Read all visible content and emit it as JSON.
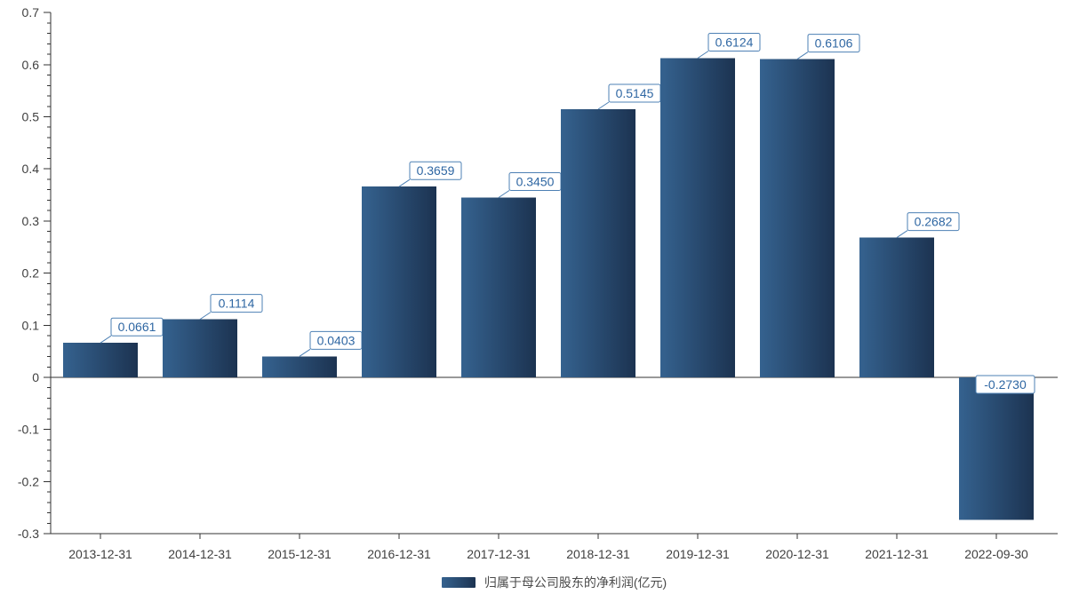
{
  "chart_data": {
    "type": "bar",
    "title": "",
    "legend": "归属于母公司股东的净利润(亿元)",
    "legend_position": "bottom",
    "categories": [
      "2013-12-31",
      "2014-12-31",
      "2015-12-31",
      "2016-12-31",
      "2017-12-31",
      "2018-12-31",
      "2019-12-31",
      "2020-12-31",
      "2021-12-31",
      "2022-09-30"
    ],
    "values": [
      0.0661,
      0.1114,
      0.0403,
      0.3659,
      0.345,
      0.5145,
      0.6124,
      0.6106,
      0.2682,
      -0.273
    ],
    "value_labels": [
      "0.0661",
      "0.1114",
      "0.0403",
      "0.3659",
      "0.3450",
      "0.5145",
      "0.6124",
      "0.6106",
      "0.2682",
      "-0.2730"
    ],
    "xlabel": "",
    "ylabel": "",
    "ylim": [
      -0.3,
      0.7
    ],
    "y_major_step": 0.1,
    "y_minor_step": 0.02,
    "grid": false,
    "colors": {
      "bar_gradient_left": "#35628f",
      "bar_gradient_right": "#1c3351",
      "axis": "#333333",
      "tick_label": "#404040",
      "value_label_text": "#2f67a3",
      "value_label_border": "#4d80b4",
      "legend_text": "#4a4a4a",
      "background": "#ffffff"
    }
  }
}
